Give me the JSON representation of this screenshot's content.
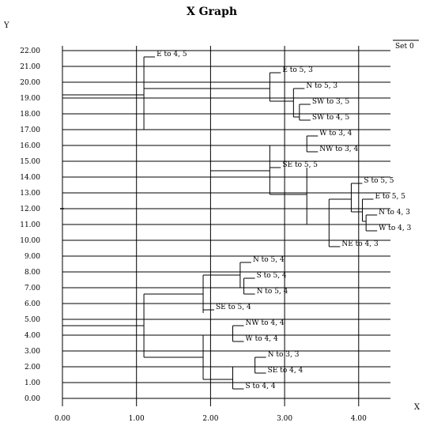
{
  "title": "X Graph",
  "xlabel": "X",
  "ylabel": "Y",
  "legend": "Set 0",
  "chart_data": {
    "type": "dendrogram",
    "title": "X Graph",
    "xlabel": "X",
    "ylabel": "Y",
    "xlim": [
      0,
      4.45
    ],
    "ylim": [
      0,
      22
    ],
    "x_ticks": [
      "0.00",
      "1.00",
      "2.00",
      "3.00",
      "4.00"
    ],
    "y_ticks": [
      "0.00",
      "1.00",
      "2.00",
      "3.00",
      "4.00",
      "5.00",
      "6.00",
      "7.00",
      "8.00",
      "9.00",
      "10.00",
      "11.00",
      "12.00",
      "13.00",
      "14.00",
      "15.00",
      "16.00",
      "17.00",
      "18.00",
      "19.00",
      "20.00",
      "21.00",
      "22.00"
    ],
    "grid": true,
    "legend": [
      "Set 0"
    ],
    "leaves": [
      {
        "label": "E to 4, 5",
        "x": 1.1,
        "y": 21.6
      },
      {
        "label": "E to 5, 3",
        "x": 2.8,
        "y": 20.6
      },
      {
        "label": "N to 5, 3",
        "x": 3.12,
        "y": 19.6
      },
      {
        "label": "SW to 3, 5",
        "x": 3.2,
        "y": 18.6
      },
      {
        "label": "SW to 4, 5",
        "x": 3.2,
        "y": 17.6
      },
      {
        "label": "W to 3, 4",
        "x": 3.3,
        "y": 16.6
      },
      {
        "label": "NW to 3, 4",
        "x": 3.3,
        "y": 15.6
      },
      {
        "label": "SE to 5, 5",
        "x": 2.8,
        "y": 14.6
      },
      {
        "label": "S to 5, 5",
        "x": 3.9,
        "y": 13.6
      },
      {
        "label": "E to 5, 5",
        "x": 4.05,
        "y": 12.6
      },
      {
        "label": "N to 4, 3",
        "x": 4.1,
        "y": 11.6
      },
      {
        "label": "W to 4, 3",
        "x": 4.1,
        "y": 10.6
      },
      {
        "label": "NE to 4, 3",
        "x": 3.6,
        "y": 9.6
      },
      {
        "label": "N to 5, 4",
        "x": 2.4,
        "y": 8.6
      },
      {
        "label": "S to 5, 4",
        "x": 2.45,
        "y": 7.6
      },
      {
        "label": "N to 5, 4",
        "x": 2.45,
        "y": 6.6
      },
      {
        "label": "SE to 5, 4",
        "x": 1.9,
        "y": 5.6
      },
      {
        "label": "NW to 4, 4",
        "x": 2.3,
        "y": 4.6
      },
      {
        "label": "W to 4, 4",
        "x": 2.3,
        "y": 3.6
      },
      {
        "label": "N to 3, 3",
        "x": 2.6,
        "y": 2.6
      },
      {
        "label": "SE to 4, 4",
        "x": 2.6,
        "y": 1.6
      },
      {
        "label": "S to 4, 4",
        "x": 2.3,
        "y": 0.6
      }
    ],
    "links": [
      {
        "x": 0,
        "y1": 4.6,
        "y2": 19.2
      },
      {
        "x": 1.1,
        "y1": 17,
        "y2": 21.6
      },
      {
        "x": 2.8,
        "y1": 18.8,
        "y2": 20.6
      },
      {
        "x": 3.12,
        "y1": 17.8,
        "y2": 19.6
      },
      {
        "x": 3.2,
        "y1": 17.6,
        "y2": 18.6
      },
      {
        "x": 1.0,
        "y1": 4.6,
        "y2": 4.6
      },
      {
        "x": 1.1,
        "y1": 2.6,
        "y2": 6.6
      },
      {
        "x": 1.9,
        "y1": 5.4,
        "y2": 7.8
      },
      {
        "x": 2.4,
        "y1": 7.0,
        "y2": 8.6
      },
      {
        "x": 2.45,
        "y1": 6.6,
        "y2": 7.6
      },
      {
        "x": 1.9,
        "y1": 1.2,
        "y2": 4.0
      },
      {
        "x": 2.3,
        "y1": 3.6,
        "y2": 4.6
      },
      {
        "x": 2.3,
        "y1": 0.6,
        "y2": 2.0
      },
      {
        "x": 2.6,
        "y1": 1.6,
        "y2": 2.6
      },
      {
        "x": 2.8,
        "y1": 12.9,
        "y2": 16.0
      },
      {
        "x": 3.3,
        "y1": 15.6,
        "y2": 16.6
      },
      {
        "x": 3.3,
        "y1": 11.0,
        "y2": 14.6
      },
      {
        "x": 3.6,
        "y1": 9.6,
        "y2": 12.6
      },
      {
        "x": 3.9,
        "y1": 11.8,
        "y2": 13.6
      },
      {
        "x": 4.05,
        "y1": 11.2,
        "y2": 12.6
      },
      {
        "x": 4.1,
        "y1": 10.6,
        "y2": 11.6
      }
    ]
  }
}
